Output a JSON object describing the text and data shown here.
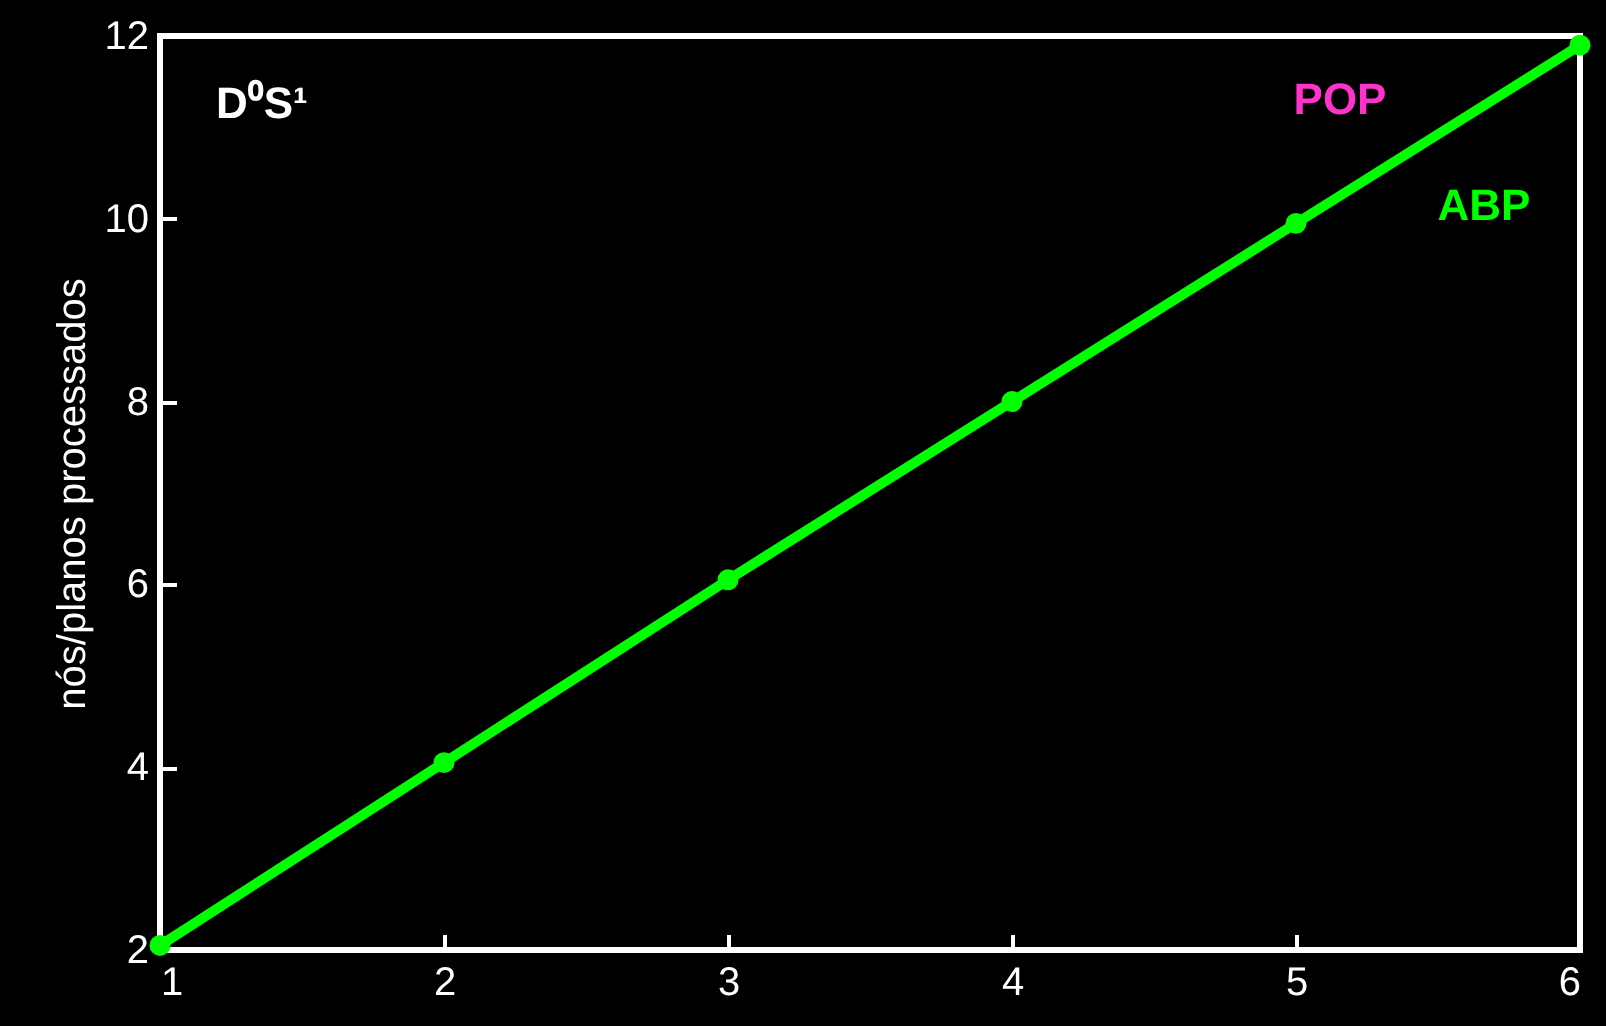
{
  "chart_data": {
    "type": "line",
    "ylabel": "nós/planos processados",
    "annotations": [
      "D⁰S¹"
    ],
    "x": [
      1,
      2,
      3,
      4,
      5,
      6
    ],
    "series": [
      {
        "name": "POP",
        "color": "#ff33cc",
        "values": [
          null,
          null,
          null,
          null,
          null,
          null
        ]
      },
      {
        "name": "ABP",
        "color": "#00ff00",
        "values": [
          2.05,
          4.05,
          6.05,
          8,
          9.95,
          11.9
        ]
      }
    ],
    "xlim": [
      1,
      6
    ],
    "xticks": [
      1,
      2,
      3,
      4,
      5,
      6
    ],
    "ylim": [
      2,
      12
    ],
    "yticks": [
      2,
      4,
      6,
      8,
      10,
      12
    ],
    "legend": "top right",
    "marker": "circle",
    "line_style": "solid",
    "grid": false
  }
}
